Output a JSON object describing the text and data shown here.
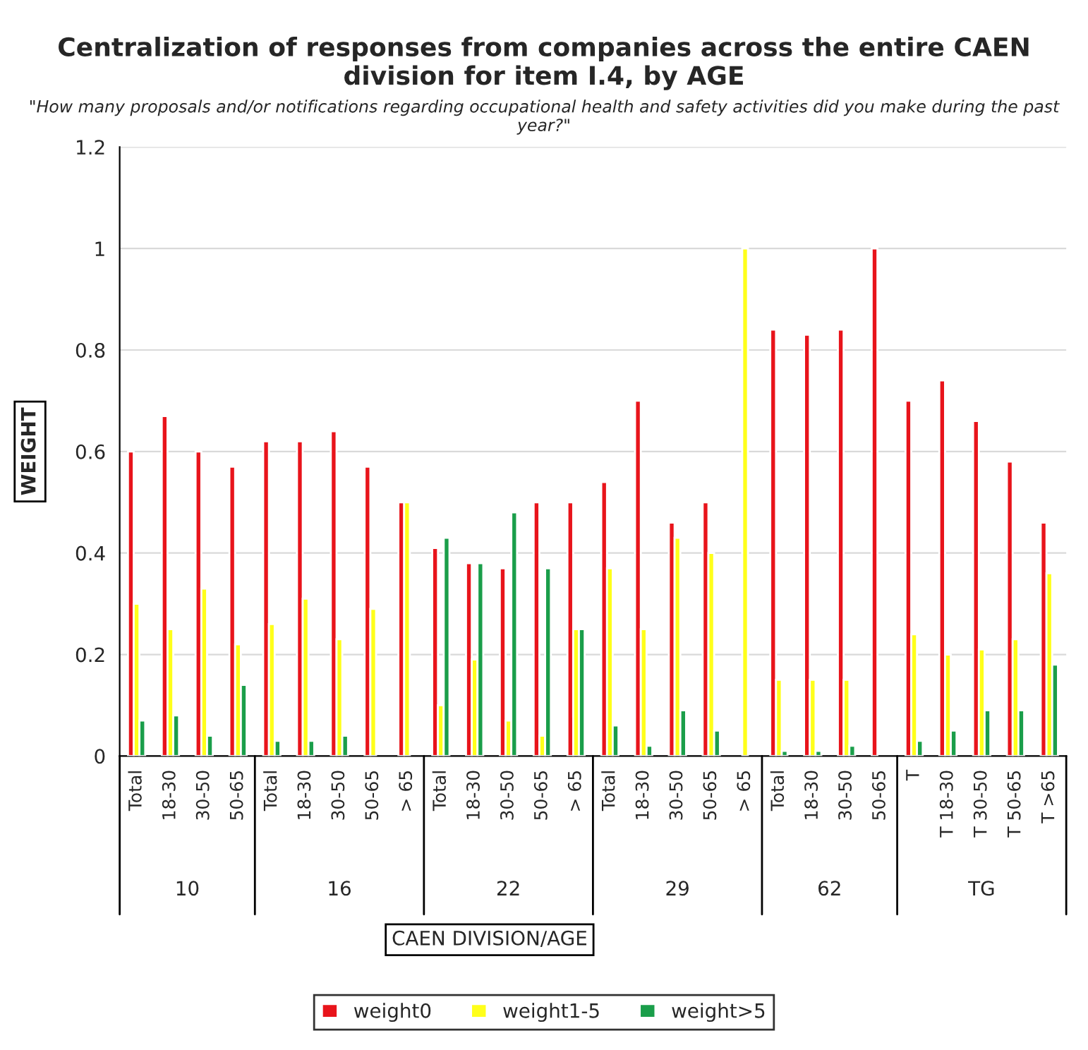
{
  "chart_data": {
    "type": "bar",
    "title": "Centralization of responses from companies across the entire CAEN division for item I.4, by AGE",
    "subtitle": "\"How many proposals and/or notifications regarding occupational health and safety activities did you make during the past year?\"",
    "xlabel": "CAEN DIVISION/AGE",
    "ylabel": "WEIGHT",
    "categories": [
      "Total",
      "18-30",
      "30-50",
      "50-65",
      "Total",
      "18-30",
      "30-50",
      "50-65",
      "> 65",
      "Total",
      "18-30",
      "30-50",
      "50-65",
      "> 65",
      "Total",
      "18-30",
      "30-50",
      "50-65",
      "> 65",
      "Total",
      "18-30",
      "30-50",
      "50-65",
      "T",
      "T 18-30",
      "T 30-50",
      "T 50-65",
      "T >65"
    ],
    "series": [
      {
        "name": "weight0",
        "color": "#e8141b",
        "values": [
          0.6,
          0.67,
          0.6,
          0.57,
          0.62,
          0.62,
          0.64,
          0.57,
          0.5,
          0.41,
          0.38,
          0.37,
          0.5,
          0.5,
          0.54,
          0.7,
          0.46,
          0.5,
          null,
          0.84,
          0.83,
          0.84,
          1.0,
          0.7,
          0.74,
          0.66,
          0.58,
          0.46
        ]
      },
      {
        "name": "weight1-5",
        "color": "#ffff1a",
        "values": [
          0.3,
          0.25,
          0.33,
          0.22,
          0.26,
          0.31,
          0.23,
          0.29,
          0.5,
          0.1,
          0.19,
          0.07,
          0.04,
          0.25,
          0.37,
          0.25,
          0.43,
          0.4,
          1.0,
          0.15,
          0.15,
          0.15,
          null,
          0.24,
          0.2,
          0.21,
          0.23,
          0.36
        ]
      },
      {
        "name": "weight>5",
        "color": "#1a9e4a",
        "values": [
          0.07,
          0.08,
          0.04,
          0.14,
          0.03,
          0.03,
          0.04,
          null,
          null,
          0.43,
          0.38,
          0.48,
          0.37,
          0.25,
          0.06,
          0.02,
          0.09,
          0.05,
          null,
          0.01,
          0.01,
          0.02,
          null,
          0.03,
          0.05,
          0.09,
          0.09,
          0.18
        ]
      }
    ],
    "ylim": [
      0,
      1.2
    ],
    "yticks": [
      0,
      0.2,
      0.4,
      0.6,
      0.8,
      1,
      1.2
    ],
    "annotations": [
      "10",
      "16",
      "22",
      "29",
      "62",
      "TG"
    ],
    "grid": "y",
    "legend": "bottom"
  }
}
